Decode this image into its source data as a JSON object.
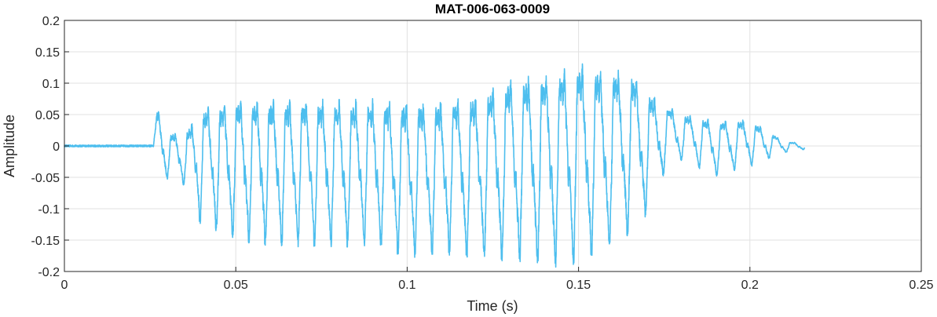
{
  "chart_data": {
    "type": "line",
    "title": "MAT-006-063-0009",
    "xlabel": "Time (s)",
    "ylabel": "Amplitude",
    "xlim": [
      0,
      0.25
    ],
    "ylim": [
      -0.2,
      0.2
    ],
    "xticks": [
      0,
      0.05,
      0.1,
      0.15,
      0.2,
      0.25
    ],
    "yticks": [
      -0.2,
      -0.15,
      -0.1,
      -0.05,
      0,
      0.05,
      0.1,
      0.15,
      0.2
    ],
    "xtick_labels": [
      "0",
      "0.05",
      "0.1",
      "0.15",
      "0.2",
      "0.25"
    ],
    "ytick_labels": [
      "-0.2",
      "-0.15",
      "-0.1",
      "-0.05",
      "0",
      "0.05",
      "0.1",
      "0.15",
      "0.2"
    ],
    "grid": true,
    "line_color": "#4DBEEE",
    "series": [
      {
        "description_values": "speech waveform: near-silent until 0.026 s, onset burst at 0.026 s, quasi-periodic oscillation ~200 Hz with envelope peaking near 0.15 s, decaying to end at 0.216 s",
        "onset_time": 0.026,
        "end_time": 0.216,
        "envelope": {
          "t": [
            0,
            0.026,
            0.027,
            0.03,
            0.035,
            0.04,
            0.05,
            0.06,
            0.07,
            0.08,
            0.09,
            0.1,
            0.11,
            0.12,
            0.13,
            0.14,
            0.15,
            0.16,
            0.165,
            0.17,
            0.175,
            0.18,
            0.19,
            0.2,
            0.21,
            0.216
          ],
          "upper": [
            0.002,
            0.002,
            0.074,
            0.03,
            0.03,
            0.08,
            0.1,
            0.1,
            0.1,
            0.1,
            0.1,
            0.1,
            0.1,
            0.11,
            0.14,
            0.15,
            0.165,
            0.155,
            0.15,
            0.11,
            0.08,
            0.06,
            0.05,
            0.05,
            0.01,
            0.005
          ],
          "lower": [
            -0.002,
            -0.002,
            -0.04,
            -0.05,
            -0.06,
            -0.12,
            -0.14,
            -0.15,
            -0.15,
            -0.15,
            -0.15,
            -0.17,
            -0.16,
            -0.17,
            -0.17,
            -0.18,
            -0.175,
            -0.15,
            -0.13,
            -0.1,
            -0.04,
            -0.02,
            -0.045,
            -0.03,
            -0.01,
            -0.005
          ]
        },
        "f0_hz": 200
      }
    ]
  }
}
